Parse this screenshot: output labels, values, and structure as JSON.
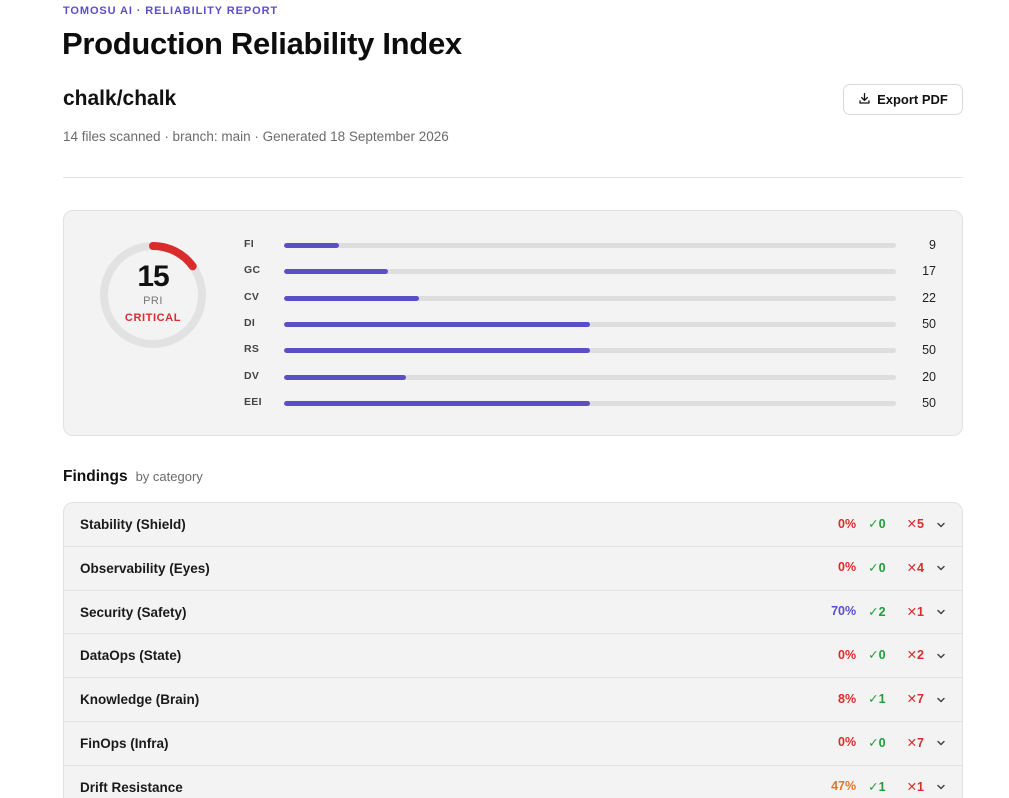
{
  "header": {
    "eyebrow": "TOMOSU AI · RELIABILITY REPORT",
    "title": "Production Reliability Index",
    "repo": "chalk/chalk",
    "meta": "14 files scanned · branch: main · Generated 18 September 2026",
    "export_label": "Export PDF",
    "export_icon": "download-icon"
  },
  "score": {
    "value": "15",
    "label": "PRI",
    "status": "CRITICAL",
    "fraction": 0.15,
    "gauge_color": "#d92d2d"
  },
  "metrics": [
    {
      "label": "FI",
      "value": 9
    },
    {
      "label": "GC",
      "value": 17
    },
    {
      "label": "CV",
      "value": 22
    },
    {
      "label": "DI",
      "value": 50
    },
    {
      "label": "RS",
      "value": 50
    },
    {
      "label": "DV",
      "value": 20
    },
    {
      "label": "EEI",
      "value": 50
    }
  ],
  "metrics_max": 100,
  "findings": {
    "title": "Findings",
    "subtitle": "by category",
    "rows": [
      {
        "name": "Stability (Shield)",
        "pct": "0%",
        "pct_color": "#d92d2d",
        "pass": "✓0",
        "fail": "✕5"
      },
      {
        "name": "Observability (Eyes)",
        "pct": "0%",
        "pct_color": "#d92d2d",
        "pass": "✓0",
        "fail": "✕4"
      },
      {
        "name": "Security (Safety)",
        "pct": "70%",
        "pct_color": "#5b4fc7",
        "pass": "✓2",
        "fail": "✕1"
      },
      {
        "name": "DataOps (State)",
        "pct": "0%",
        "pct_color": "#d92d2d",
        "pass": "✓0",
        "fail": "✕2"
      },
      {
        "name": "Knowledge (Brain)",
        "pct": "8%",
        "pct_color": "#d92d2d",
        "pass": "✓1",
        "fail": "✕7"
      },
      {
        "name": "FinOps (Infra)",
        "pct": "0%",
        "pct_color": "#d92d2d",
        "pass": "✓0",
        "fail": "✕7"
      },
      {
        "name": "Drift Resistance",
        "pct": "47%",
        "pct_color": "#e0782a",
        "pass": "✓1",
        "fail": "✕1"
      }
    ]
  },
  "colors": {
    "accent": "#5b4fc7",
    "critical": "#d92d2d",
    "pass": "#1f9d3a",
    "warn": "#e0782a"
  }
}
